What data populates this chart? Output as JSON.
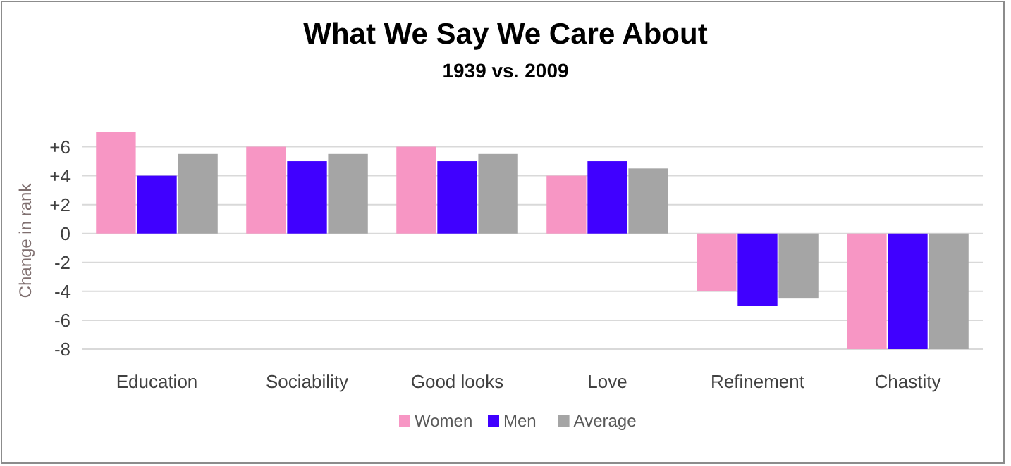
{
  "chart_data": {
    "type": "bar",
    "title": "What We Say We Care About",
    "subtitle": "1939 vs. 2009",
    "ylabel": "Change in rank",
    "categories": [
      "Education",
      "Sociability",
      "Good looks",
      "Love",
      "Refinement",
      "Chastity"
    ],
    "series": [
      {
        "name": "Women",
        "color": "#f796c4",
        "values": [
          7,
          6,
          6,
          4,
          -4,
          -8
        ]
      },
      {
        "name": "Men",
        "color": "#4000ff",
        "values": [
          4,
          5,
          5,
          5,
          -5,
          -8
        ]
      },
      {
        "name": "Average",
        "color": "#a5a5a5",
        "values": [
          5.5,
          5.5,
          5.5,
          4.5,
          -4.5,
          -8
        ]
      }
    ],
    "ylim": [
      -8,
      7
    ],
    "yticks": [
      {
        "value": 6,
        "label": "+6"
      },
      {
        "value": 4,
        "label": "+4"
      },
      {
        "value": 2,
        "label": "+2"
      },
      0,
      -2,
      -4,
      -6,
      -8
    ],
    "grid": "y",
    "legend": "bottom"
  }
}
